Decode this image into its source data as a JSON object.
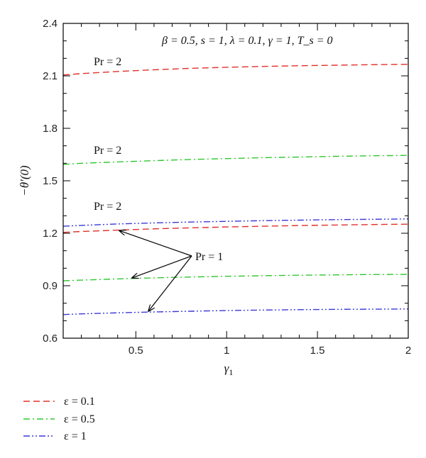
{
  "chart_data": {
    "type": "line",
    "xlabel": "γ",
    "xlabel_sub": "1",
    "ylabel": "−θ′(0)",
    "xlim": [
      0.1,
      2
    ],
    "ylim": [
      0.6,
      2.4
    ],
    "x_ticks": [
      0.5,
      1,
      1.5,
      2
    ],
    "x_tick_labels": [
      "0.5",
      "1",
      "1.5",
      "2"
    ],
    "y_ticks": [
      0.6,
      0.9,
      1.2,
      1.5,
      1.8,
      2.1,
      2.4
    ],
    "y_tick_labels": [
      "0.6",
      "0.9",
      "1.2",
      "1.5",
      "1.8",
      "2.1",
      "2.4"
    ],
    "x_minor_step": 0.1,
    "y_minor_step": 0.1,
    "grid": false,
    "legend_position": "bottom-left (below plot)",
    "x": [
      0.1,
      0.2,
      0.4,
      0.6,
      0.8,
      1.0,
      1.2,
      1.4,
      1.6,
      1.8,
      2.0
    ],
    "series": [
      {
        "name": "ε = 0.1",
        "pr": 2,
        "color": "#e0302a",
        "style": "dashed",
        "values": [
          2.105,
          2.113,
          2.125,
          2.135,
          2.143,
          2.149,
          2.154,
          2.158,
          2.161,
          2.164,
          2.166
        ]
      },
      {
        "name": "ε = 0.5",
        "pr": 2,
        "color": "#2ec82e",
        "style": "dash-dot",
        "values": [
          1.594,
          1.6,
          1.608,
          1.615,
          1.622,
          1.627,
          1.632,
          1.636,
          1.64,
          1.643,
          1.645
        ]
      },
      {
        "name": "ε = 1",
        "pr": 2,
        "color": "#3a3ad8",
        "style": "dash-dot-dot",
        "values": [
          1.24,
          1.245,
          1.253,
          1.259,
          1.264,
          1.268,
          1.272,
          1.275,
          1.278,
          1.28,
          1.282
        ]
      },
      {
        "name": "ε = 0.1",
        "pr": 1,
        "color": "#e0302a",
        "style": "dashed",
        "values": [
          1.205,
          1.21,
          1.218,
          1.225,
          1.231,
          1.236,
          1.24,
          1.244,
          1.247,
          1.25,
          1.252
        ]
      },
      {
        "name": "ε = 0.5",
        "pr": 1,
        "color": "#2ec82e",
        "style": "dash-dot",
        "values": [
          0.928,
          0.932,
          0.939,
          0.945,
          0.95,
          0.954,
          0.957,
          0.96,
          0.962,
          0.964,
          0.965
        ]
      },
      {
        "name": "ε = 1",
        "pr": 1,
        "color": "#3a3ad8",
        "style": "dash-dot-dot",
        "values": [
          0.735,
          0.739,
          0.745,
          0.75,
          0.754,
          0.758,
          0.761,
          0.763,
          0.765,
          0.766,
          0.767
        ]
      }
    ],
    "annotations": {
      "params": "β = 0.5, s = 1, λ = 0.1, γ = 1, T_s = 0",
      "pr2_label": "Pr = 2",
      "pr1_label": "Pr = 1",
      "pr1_arrow_targets": [
        [
          0.41,
          1.215
        ],
        [
          0.48,
          0.945
        ],
        [
          0.57,
          0.755
        ]
      ]
    }
  }
}
